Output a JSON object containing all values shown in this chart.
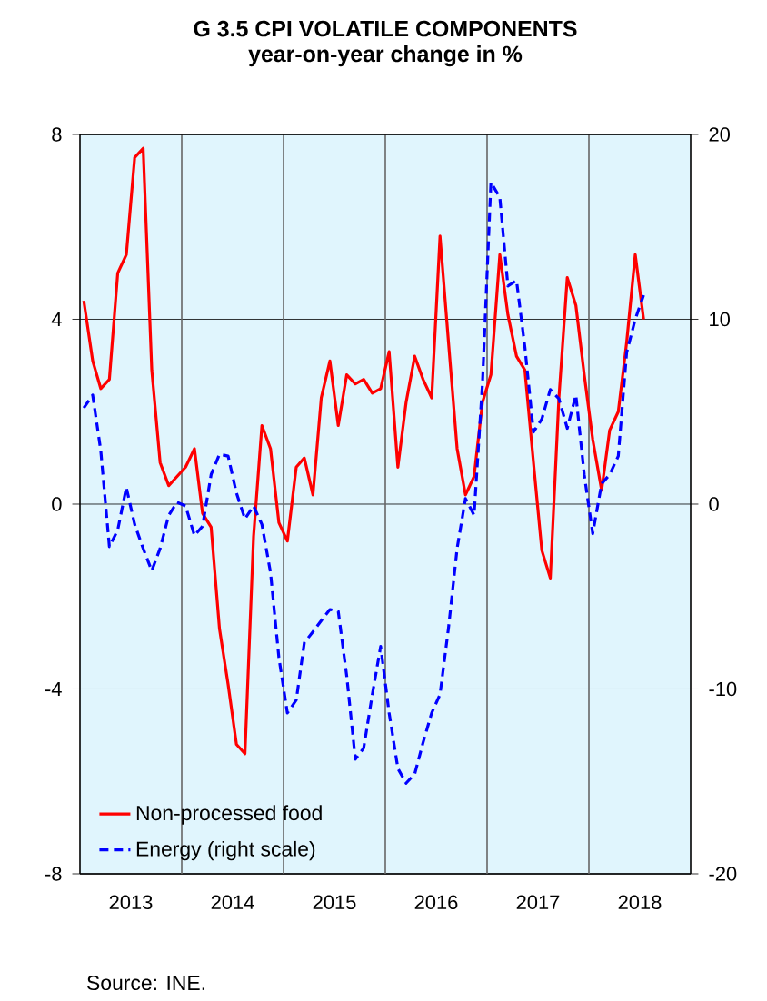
{
  "chart_data": {
    "type": "line",
    "title": "G 3.5 CPI VOLATILE COMPONENTS",
    "subtitle": "year-on-year change in %",
    "x": [
      "2013-01-15",
      "2013-02-15",
      "2013-03-15",
      "2013-04-15",
      "2013-05-15",
      "2013-06-15",
      "2013-07-15",
      "2013-08-15",
      "2013-09-15",
      "2013-10-15",
      "2013-11-15",
      "2013-12-15",
      "2014-01-15",
      "2014-02-15",
      "2014-03-15",
      "2014-04-15",
      "2014-05-15",
      "2014-06-15",
      "2014-07-15",
      "2014-08-15",
      "2014-09-15",
      "2014-10-15",
      "2014-11-15",
      "2014-12-15",
      "2015-01-15",
      "2015-02-15",
      "2015-03-15",
      "2015-04-15",
      "2015-05-15",
      "2015-06-15",
      "2015-07-15",
      "2015-08-15",
      "2015-09-15",
      "2015-10-15",
      "2015-11-15",
      "2015-12-15",
      "2016-01-15",
      "2016-02-15",
      "2016-03-15",
      "2016-04-15",
      "2016-05-15",
      "2016-06-15",
      "2016-07-15",
      "2016-08-15",
      "2016-09-15",
      "2016-10-15",
      "2016-11-15",
      "2016-12-15",
      "2017-01-15",
      "2017-02-15",
      "2017-03-15",
      "2017-04-15",
      "2017-05-15",
      "2017-06-15",
      "2017-07-15",
      "2017-08-15",
      "2017-09-15",
      "2017-10-15",
      "2017-11-15",
      "2017-12-15",
      "2018-01-15",
      "2018-02-15",
      "2018-03-15",
      "2018-04-15",
      "2018-05-15",
      "2018-06-15",
      "2018-07-15"
    ],
    "series": [
      {
        "name": "Non-processed food",
        "color": "#ff0000",
        "line_style": "solid",
        "values": [
          4.4,
          3.1,
          2.5,
          2.7,
          5.0,
          5.4,
          7.5,
          7.7,
          2.9,
          0.9,
          0.4,
          0.6,
          0.8,
          1.2,
          -0.2,
          -0.5,
          -2.7,
          -3.9,
          -5.2,
          -5.4,
          -0.7,
          1.7,
          1.2,
          -0.4,
          -0.8,
          0.8,
          1.0,
          0.2,
          2.3,
          3.1,
          1.7,
          2.8,
          2.6,
          2.7,
          2.4,
          2.5,
          3.3,
          0.8,
          2.2,
          3.2,
          2.7,
          2.3,
          5.8,
          3.5,
          1.2,
          0.2,
          0.6,
          2.2,
          2.8,
          5.4,
          4.1,
          3.2,
          2.9,
          0.9,
          -1.0,
          -1.6,
          2.3,
          4.9,
          4.3,
          2.8,
          1.4,
          0.3,
          1.6,
          2.0,
          3.5,
          5.4,
          4.0
        ]
      },
      {
        "name": "Energy (right scale)",
        "color": "#0000ff",
        "line_style": "dashed",
        "axis": "y2",
        "values": [
          5.2,
          5.9,
          2.9,
          -2.3,
          -1.4,
          0.9,
          -1.1,
          -2.4,
          -3.6,
          -2.4,
          -0.6,
          0.1,
          -0.1,
          -1.7,
          -1.2,
          1.6,
          2.7,
          2.6,
          0.6,
          -0.8,
          -0.1,
          -1.1,
          -3.7,
          -8.3,
          -11.3,
          -10.6,
          -7.5,
          -6.9,
          -6.3,
          -5.7,
          -5.8,
          -9.3,
          -13.8,
          -13.2,
          -10.3,
          -7.7,
          -11.3,
          -14.3,
          -15.1,
          -14.6,
          -12.9,
          -11.3,
          -10.3,
          -6.7,
          -2.4,
          0.3,
          -0.6,
          6.5,
          17.4,
          16.6,
          11.8,
          12.1,
          8.5,
          3.9,
          4.6,
          6.2,
          5.7,
          4.1,
          5.9,
          1.6,
          -1.6,
          1.1,
          1.6,
          2.6,
          8.2,
          10.0,
          11.3
        ]
      }
    ],
    "xlim": [
      "2013-01-01",
      "2019-01-01"
    ],
    "xticks": [
      {
        "value": "2013-07-01",
        "label": "2013"
      },
      {
        "value": "2014-01-01",
        "label": null
      },
      {
        "value": "2014-07-01",
        "label": "2014"
      },
      {
        "value": "2015-01-01",
        "label": null
      },
      {
        "value": "2015-07-01",
        "label": "2015"
      },
      {
        "value": "2016-01-01",
        "label": null
      },
      {
        "value": "2016-07-01",
        "label": "2016"
      },
      {
        "value": "2017-01-01",
        "label": null
      },
      {
        "value": "2017-07-01",
        "label": "2017"
      },
      {
        "value": "2018-01-01",
        "label": null
      },
      {
        "value": "2018-07-01",
        "label": "2018"
      }
    ],
    "ylim": [
      -8,
      8
    ],
    "yticks": [
      -8,
      -4,
      0,
      4,
      8
    ],
    "y2lim": [
      -20,
      20
    ],
    "y2ticks": [
      -20,
      -10,
      0,
      10,
      20
    ],
    "grid": true,
    "legend": "bottom left",
    "marker": "none",
    "annotations": [
      "Source: INE."
    ]
  }
}
